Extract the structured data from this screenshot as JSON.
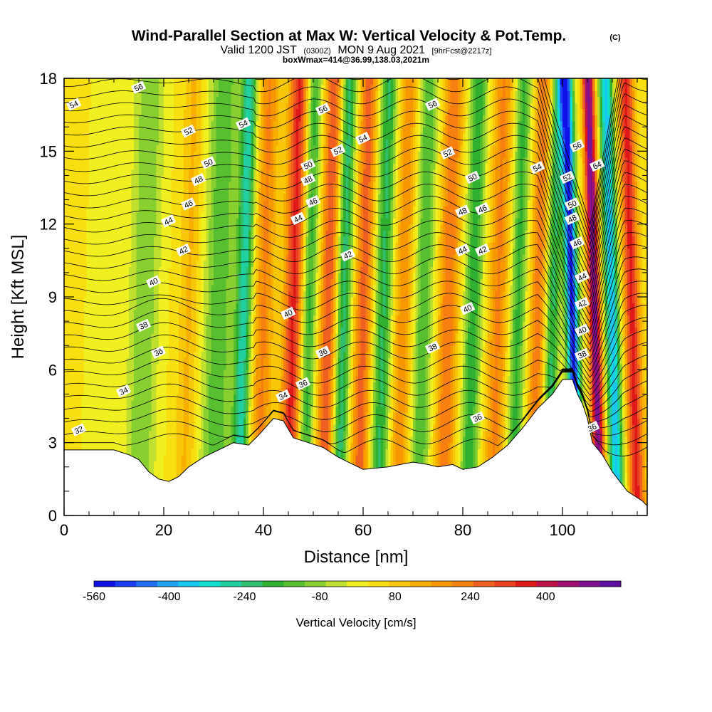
{
  "chart_data": {
    "type": "heatmap",
    "title": "Wind-Parallel Section at Max W: Vertical Velocity & Pot.Temp.",
    "title_mark": "(C)",
    "subtitle": {
      "valid": "Valid 1200 JST",
      "utc": "(0300Z)",
      "date": "MON 9 Aug 2021",
      "fcst": "[9hrFcst@2217z]"
    },
    "box_info": "boxWmax=414@36.99,138.03,2021m",
    "xlabel": "Distance [nm]",
    "ylabel": "Height [Kft MSL]",
    "xlim": [
      0,
      117
    ],
    "ylim": [
      0,
      18
    ],
    "x_ticks": [
      "0",
      "20",
      "40",
      "60",
      "80",
      "100"
    ],
    "y_ticks": [
      "0",
      "3",
      "6",
      "9",
      "12",
      "15",
      "18"
    ],
    "colorbar": {
      "label": "Vertical Velocity [cm/s]",
      "tick_labels": [
        "-560",
        "-400",
        "-240",
        "-80",
        "80",
        "240",
        "400"
      ],
      "tick_values": [
        -560,
        -400,
        -240,
        -80,
        80,
        240,
        400
      ],
      "bounds": [
        -560,
        560
      ],
      "colors": [
        "#1010e8",
        "#1a3cf2",
        "#1e6ef6",
        "#20a0f8",
        "#18c8f0",
        "#10e0d0",
        "#20d0a0",
        "#30c070",
        "#30b030",
        "#58c030",
        "#88d030",
        "#c0e030",
        "#f0f020",
        "#f8e010",
        "#f8c808",
        "#f8b000",
        "#f89800",
        "#f88010",
        "#f06020",
        "#e84020",
        "#e01818",
        "#c01048",
        "#a01070",
        "#801090",
        "#6010a0"
      ],
      "levels_per_color": 40
    },
    "terrain": {
      "distance_nm": [
        0,
        5,
        10,
        13,
        15,
        17,
        19,
        21,
        23,
        25,
        28,
        30,
        32,
        34,
        37,
        39,
        42,
        44,
        46,
        49,
        52,
        55,
        60,
        65,
        70,
        73,
        75,
        78,
        80,
        83,
        86,
        89,
        92,
        95,
        98,
        100,
        102,
        103,
        104,
        105,
        106,
        108,
        110,
        113,
        116,
        117
      ],
      "height_kft": [
        2.7,
        2.7,
        2.7,
        2.5,
        2.3,
        1.8,
        1.5,
        1.4,
        1.6,
        2.0,
        2.4,
        2.6,
        2.8,
        3.0,
        2.9,
        3.3,
        4.0,
        3.9,
        3.2,
        3.0,
        2.8,
        2.4,
        1.9,
        2.0,
        2.2,
        2.1,
        2.0,
        2.1,
        1.9,
        2.0,
        2.4,
        2.9,
        3.6,
        4.4,
        5.0,
        5.6,
        5.6,
        5.0,
        4.6,
        4.0,
        3.0,
        2.5,
        1.8,
        1.0,
        0.6,
        0.4
      ]
    },
    "vertical_velocity_bands": [
      {
        "x": 8,
        "w": 3,
        "v": -40
      },
      {
        "x": 16,
        "w": 3,
        "v": -140
      },
      {
        "x": 25,
        "w": 2,
        "v": 90
      },
      {
        "x": 31,
        "w": 3,
        "v": -180
      },
      {
        "x": 36,
        "w": 1.6,
        "v": -300
      },
      {
        "x": 40,
        "w": 2,
        "v": 180
      },
      {
        "x": 46,
        "w": 2,
        "v": 320
      },
      {
        "x": 49,
        "w": 1.6,
        "v": -220
      },
      {
        "x": 53,
        "w": 1.8,
        "v": 260
      },
      {
        "x": 56,
        "w": 1.6,
        "v": -260
      },
      {
        "x": 60,
        "w": 1.8,
        "v": 240
      },
      {
        "x": 64,
        "w": 1.8,
        "v": -240
      },
      {
        "x": 68,
        "w": 2,
        "v": 160
      },
      {
        "x": 72,
        "w": 2,
        "v": -180
      },
      {
        "x": 77,
        "w": 2,
        "v": 210
      },
      {
        "x": 82,
        "w": 1.8,
        "v": -220
      },
      {
        "x": 87,
        "w": 2,
        "v": 180
      },
      {
        "x": 91,
        "w": 1.6,
        "v": -200
      },
      {
        "x": 95,
        "w": 1.6,
        "v": 200
      },
      {
        "x": 98,
        "w": 1.4,
        "v": -240
      },
      {
        "x": 102,
        "w": 1.3,
        "v": -560
      },
      {
        "x": 106.5,
        "w": 1.2,
        "v": 480
      },
      {
        "x": 110,
        "w": 1.4,
        "v": -400
      },
      {
        "x": 114,
        "w": 1.6,
        "v": 320
      }
    ],
    "contour_label_values": [
      32,
      34,
      36,
      38,
      40,
      42,
      44,
      46,
      48,
      50,
      52,
      54,
      56
    ]
  },
  "contour_labels": [
    {
      "x": 3,
      "y": 3.5,
      "text": "32"
    },
    {
      "x": 12,
      "y": 5.1,
      "text": "34"
    },
    {
      "x": 44,
      "y": 4.9,
      "text": "34"
    },
    {
      "x": 19,
      "y": 6.7,
      "text": "36"
    },
    {
      "x": 52,
      "y": 6.7,
      "text": "36"
    },
    {
      "x": 48,
      "y": 5.4,
      "text": "36"
    },
    {
      "x": 74,
      "y": 6.9,
      "text": "38"
    },
    {
      "x": 83,
      "y": 4.0,
      "text": "36"
    },
    {
      "x": 16,
      "y": 7.8,
      "text": "38"
    },
    {
      "x": 18,
      "y": 9.6,
      "text": "40"
    },
    {
      "x": 45,
      "y": 8.3,
      "text": "40"
    },
    {
      "x": 81,
      "y": 8.5,
      "text": "40"
    },
    {
      "x": 24,
      "y": 10.9,
      "text": "42"
    },
    {
      "x": 57,
      "y": 10.7,
      "text": "42"
    },
    {
      "x": 84,
      "y": 10.9,
      "text": "42"
    },
    {
      "x": 21,
      "y": 12.1,
      "text": "44"
    },
    {
      "x": 47,
      "y": 12.2,
      "text": "44"
    },
    {
      "x": 80,
      "y": 10.9,
      "text": "44"
    },
    {
      "x": 25,
      "y": 12.8,
      "text": "46"
    },
    {
      "x": 50,
      "y": 12.9,
      "text": "46"
    },
    {
      "x": 84,
      "y": 12.6,
      "text": "46"
    },
    {
      "x": 27,
      "y": 13.8,
      "text": "48"
    },
    {
      "x": 49,
      "y": 13.8,
      "text": "48"
    },
    {
      "x": 80,
      "y": 12.5,
      "text": "48"
    },
    {
      "x": 29,
      "y": 14.5,
      "text": "50"
    },
    {
      "x": 49,
      "y": 14.4,
      "text": "50"
    },
    {
      "x": 82,
      "y": 13.9,
      "text": "50"
    },
    {
      "x": 25,
      "y": 15.8,
      "text": "52"
    },
    {
      "x": 55,
      "y": 15.0,
      "text": "52"
    },
    {
      "x": 77,
      "y": 14.9,
      "text": "52"
    },
    {
      "x": 36,
      "y": 16.1,
      "text": "54"
    },
    {
      "x": 2,
      "y": 16.9,
      "text": "54"
    },
    {
      "x": 60,
      "y": 15.5,
      "text": "54"
    },
    {
      "x": 15,
      "y": 17.6,
      "text": "56"
    },
    {
      "x": 52,
      "y": 16.7,
      "text": "56"
    },
    {
      "x": 74,
      "y": 16.9,
      "text": "56"
    },
    {
      "x": 95,
      "y": 14.3,
      "text": "54"
    },
    {
      "x": 101,
      "y": 13.9,
      "text": "52"
    },
    {
      "x": 102,
      "y": 12.8,
      "text": "50"
    },
    {
      "x": 102,
      "y": 12.2,
      "text": "48"
    },
    {
      "x": 103,
      "y": 15.2,
      "text": "56"
    },
    {
      "x": 103,
      "y": 11.2,
      "text": "46"
    },
    {
      "x": 104,
      "y": 9.8,
      "text": "44"
    },
    {
      "x": 104,
      "y": 8.7,
      "text": "42"
    },
    {
      "x": 104,
      "y": 7.6,
      "text": "40"
    },
    {
      "x": 104,
      "y": 6.6,
      "text": "38"
    },
    {
      "x": 106,
      "y": 3.6,
      "text": "36"
    },
    {
      "x": 107,
      "y": 14.4,
      "text": "64"
    }
  ]
}
